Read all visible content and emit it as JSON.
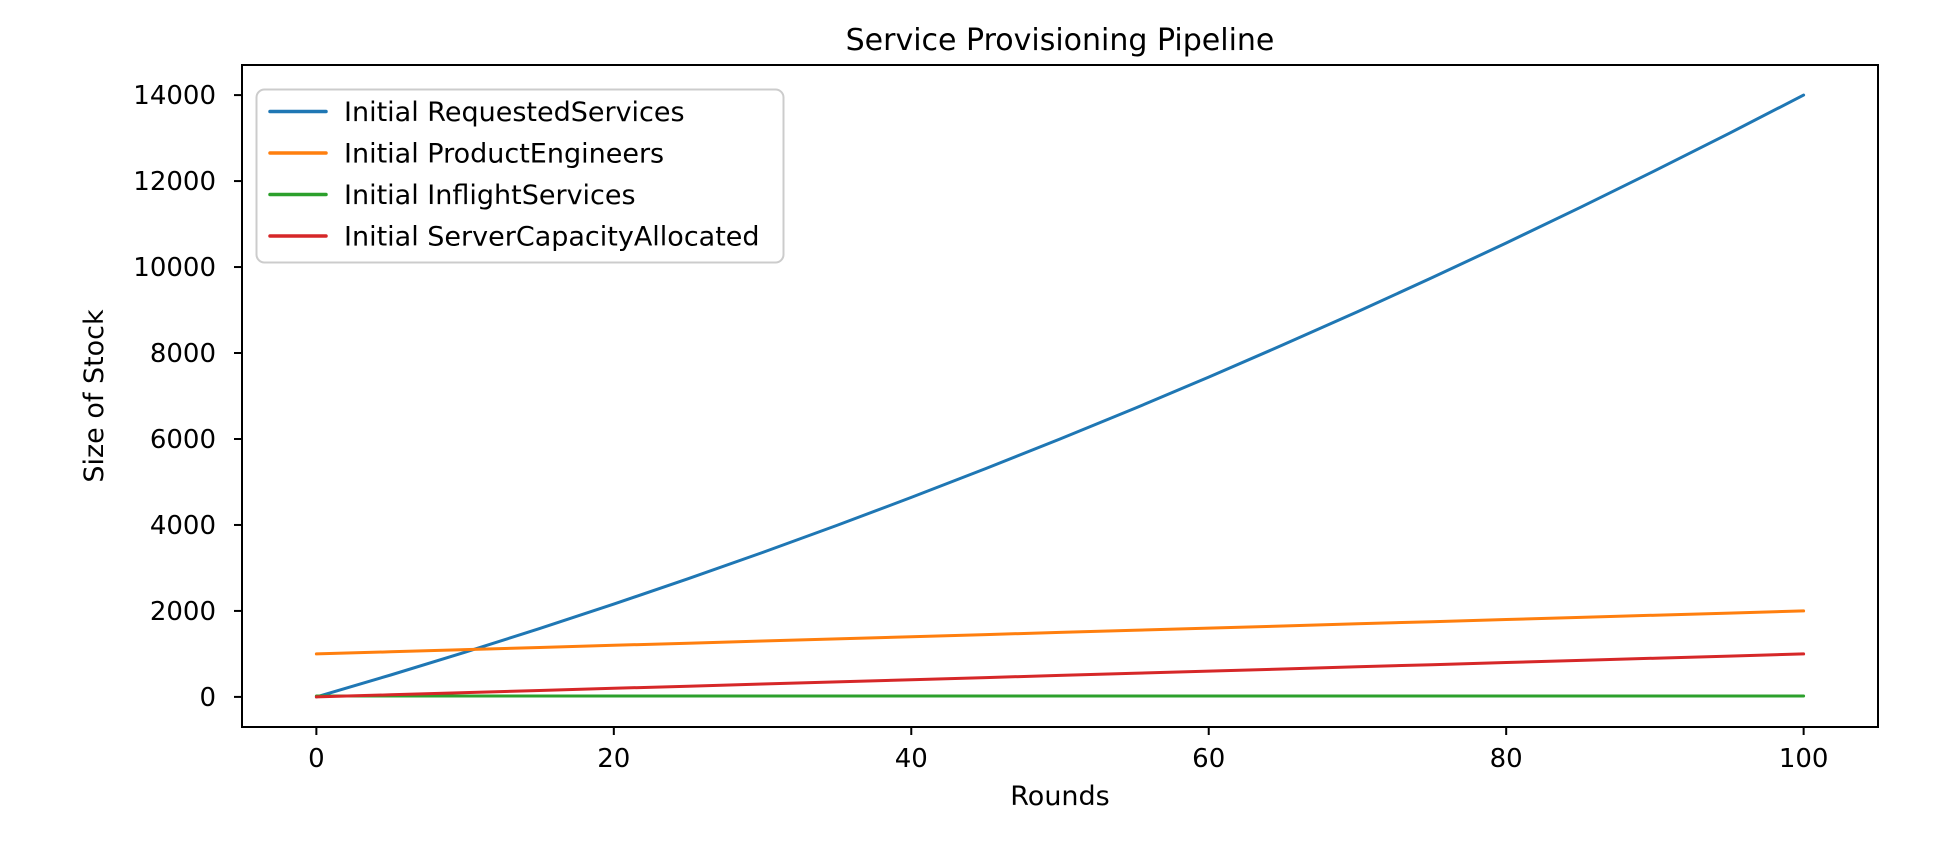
{
  "chart_data": {
    "type": "line",
    "title": "Service Provisioning Pipeline",
    "xlabel": "Rounds",
    "ylabel": "Size of Stock",
    "grid": false,
    "legend_position": "upper-left",
    "xlim": [
      -5,
      105
    ],
    "ylim": [
      -700,
      14700
    ],
    "xticks": [
      0,
      20,
      40,
      60,
      80,
      100
    ],
    "yticks": [
      0,
      2000,
      4000,
      6000,
      8000,
      10000,
      12000,
      14000
    ],
    "x": [
      0,
      5,
      10,
      15,
      20,
      25,
      30,
      35,
      40,
      45,
      50,
      55,
      60,
      65,
      70,
      75,
      80,
      85,
      90,
      95,
      100
    ],
    "series": [
      {
        "name": "Initial RequestedServices",
        "color": "#1f77b4",
        "values": [
          0,
          510,
          1040,
          1590,
          2160,
          2750,
          3360,
          3990,
          4640,
          5310,
          6000,
          6710,
          7440,
          8190,
          8960,
          9750,
          10560,
          11390,
          12240,
          13110,
          14000
        ]
      },
      {
        "name": "Initial ProductEngineers",
        "color": "#ff7f0e",
        "values": [
          1000,
          1050,
          1100,
          1150,
          1200,
          1250,
          1300,
          1350,
          1400,
          1450,
          1500,
          1550,
          1600,
          1650,
          1700,
          1750,
          1800,
          1850,
          1900,
          1950,
          2000
        ]
      },
      {
        "name": "Initial InflightServices",
        "color": "#2ca02c",
        "values": [
          20,
          20,
          20,
          20,
          20,
          20,
          20,
          20,
          20,
          20,
          20,
          20,
          20,
          20,
          20,
          20,
          20,
          20,
          20,
          20,
          20
        ]
      },
      {
        "name": "Initial ServerCapacityAllocated",
        "color": "#d62728",
        "values": [
          0,
          50,
          100,
          150,
          200,
          250,
          300,
          350,
          400,
          450,
          500,
          550,
          600,
          650,
          700,
          750,
          800,
          850,
          900,
          950,
          1000
        ]
      }
    ]
  },
  "colors": {
    "background": "#ffffff",
    "axis": "#000000",
    "text": "#000000",
    "legend_border": "#cccccc",
    "legend_background": "#ffffff"
  }
}
